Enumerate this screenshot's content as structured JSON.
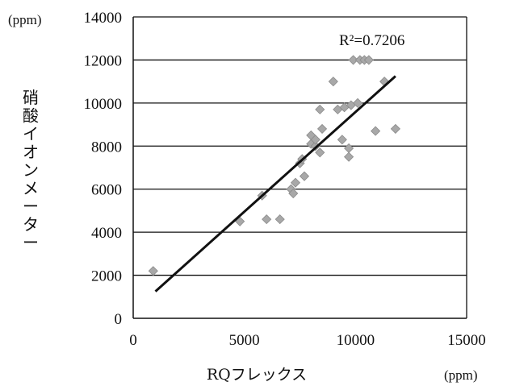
{
  "chart_data": {
    "type": "scatter",
    "xlabel": "RQフレックス",
    "ylabel": "硝酸イオンメーター",
    "x_unit": "(ppm)",
    "y_unit": "(ppm)",
    "xlim": [
      0,
      15000
    ],
    "ylim": [
      0,
      14000
    ],
    "x_ticks": [
      "0",
      "5000",
      "10000",
      "15000"
    ],
    "y_ticks": [
      "0",
      "2000",
      "4000",
      "6000",
      "8000",
      "10000",
      "12000",
      "14000"
    ],
    "grid": "horizontal",
    "annotation": "R²=0.7206",
    "marker_color": "#a8a8a8",
    "trend_color": "#111111",
    "points": [
      [
        900,
        2200
      ],
      [
        4800,
        4500
      ],
      [
        5800,
        5700
      ],
      [
        6000,
        4600
      ],
      [
        6600,
        4600
      ],
      [
        7100,
        6000
      ],
      [
        7200,
        5800
      ],
      [
        7300,
        6300
      ],
      [
        7500,
        7200
      ],
      [
        7600,
        7400
      ],
      [
        7700,
        6600
      ],
      [
        8000,
        8100
      ],
      [
        8000,
        8500
      ],
      [
        8200,
        8000
      ],
      [
        8200,
        8300
      ],
      [
        8400,
        9700
      ],
      [
        8400,
        7700
      ],
      [
        8500,
        8800
      ],
      [
        9000,
        11000
      ],
      [
        9200,
        9700
      ],
      [
        9400,
        8300
      ],
      [
        9500,
        9800
      ],
      [
        9700,
        7500
      ],
      [
        9700,
        7900
      ],
      [
        9800,
        9900
      ],
      [
        9900,
        12000
      ],
      [
        10100,
        10000
      ],
      [
        10200,
        12000
      ],
      [
        10400,
        12000
      ],
      [
        10600,
        12000
      ],
      [
        10900,
        8700
      ],
      [
        11300,
        11000
      ],
      [
        11800,
        8800
      ]
    ],
    "trendline": {
      "x": [
        1000,
        11800
      ],
      "y": [
        1250,
        11250
      ]
    }
  }
}
